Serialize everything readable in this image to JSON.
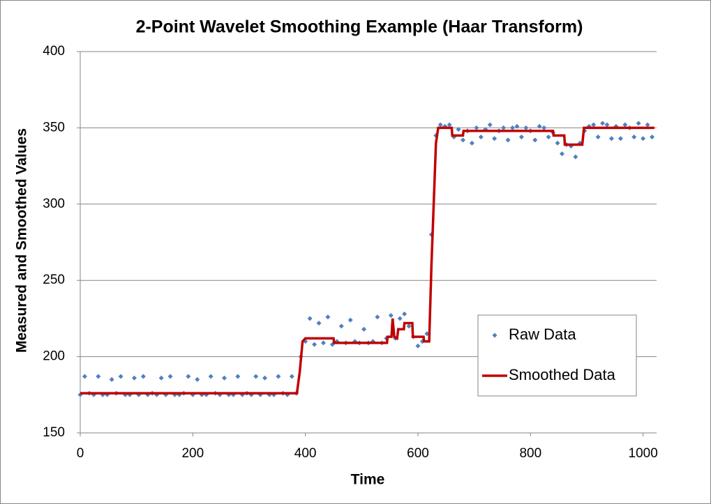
{
  "chart_data": {
    "type": "scatter-line",
    "title": "2-Point Wavelet Smoothing Example (Haar Transform)",
    "x_label": "Time",
    "y_label": "Measured and Smoothed  Values",
    "xlim": [
      0,
      1024
    ],
    "ylim": [
      150,
      400
    ],
    "xticks": [
      0,
      200,
      400,
      600,
      800,
      1000
    ],
    "yticks": [
      150,
      200,
      250,
      300,
      350,
      400
    ],
    "grid": true,
    "legend": "right",
    "series": [
      {
        "name": "Raw Data",
        "color": "#4f81bd",
        "kind": "scatter",
        "x": [
          0,
          8,
          16,
          24,
          32,
          40,
          48,
          56,
          64,
          72,
          80,
          88,
          96,
          104,
          112,
          120,
          128,
          136,
          144,
          152,
          160,
          168,
          176,
          184,
          192,
          200,
          208,
          216,
          224,
          232,
          240,
          248,
          256,
          264,
          272,
          280,
          288,
          296,
          304,
          312,
          320,
          328,
          336,
          344,
          352,
          360,
          368,
          376,
          384,
          392,
          400,
          408,
          416,
          424,
          432,
          440,
          448,
          456,
          464,
          472,
          480,
          488,
          496,
          504,
          512,
          520,
          528,
          536,
          544,
          552,
          560,
          568,
          576,
          584,
          592,
          600,
          608,
          616,
          624,
          632,
          640,
          648,
          656,
          664,
          672,
          680,
          688,
          696,
          704,
          712,
          720,
          728,
          736,
          744,
          752,
          760,
          768,
          776,
          784,
          792,
          800,
          808,
          816,
          824,
          832,
          840,
          848,
          856,
          864,
          872,
          880,
          888,
          896,
          904,
          912,
          920,
          928,
          936,
          944,
          952,
          960,
          968,
          976,
          984,
          992,
          1000,
          1008,
          1016
        ],
        "values": [
          175,
          187,
          176,
          175,
          187,
          175,
          175,
          185,
          176,
          187,
          175,
          175,
          186,
          175,
          187,
          175,
          176,
          175,
          186,
          175,
          187,
          175,
          175,
          176,
          187,
          175,
          185,
          175,
          175,
          187,
          176,
          175,
          186,
          175,
          175,
          187,
          175,
          176,
          175,
          187,
          175,
          186,
          175,
          175,
          187,
          176,
          175,
          187,
          176,
          200,
          210,
          225,
          208,
          222,
          209,
          226,
          208,
          210,
          220,
          209,
          224,
          210,
          209,
          218,
          209,
          210,
          226,
          209,
          212,
          227,
          212,
          225,
          228,
          220,
          213,
          207,
          210,
          215,
          280,
          345,
          352,
          351,
          352,
          344,
          349,
          342,
          348,
          340,
          350,
          344,
          349,
          352,
          343,
          348,
          350,
          342,
          350,
          351,
          344,
          350,
          348,
          342,
          351,
          350,
          344,
          347,
          340,
          333,
          339,
          338,
          331,
          340,
          348,
          351,
          352,
          344,
          353,
          352,
          343,
          351,
          343,
          352,
          350,
          344,
          353,
          343,
          352,
          344
        ]
      },
      {
        "name": "Smoothed Data",
        "color": "#c00000",
        "kind": "line",
        "x": [
          0,
          385,
          390,
          395,
          400,
          450,
          451,
          545,
          546,
          553,
          555,
          558,
          563,
          565,
          575,
          576,
          590,
          591,
          610,
          611,
          620,
          624,
          628,
          632,
          636,
          660,
          661,
          680,
          681,
          840,
          841,
          860,
          861,
          892,
          895,
          1020
        ],
        "values": [
          176,
          176,
          190,
          210,
          212,
          212,
          209,
          209,
          213,
          213,
          225,
          213,
          212,
          218,
          218,
          222,
          222,
          213,
          213,
          210,
          210,
          260,
          300,
          340,
          350,
          350,
          345,
          345,
          348,
          348,
          345,
          345,
          339,
          339,
          350,
          350
        ]
      }
    ]
  }
}
